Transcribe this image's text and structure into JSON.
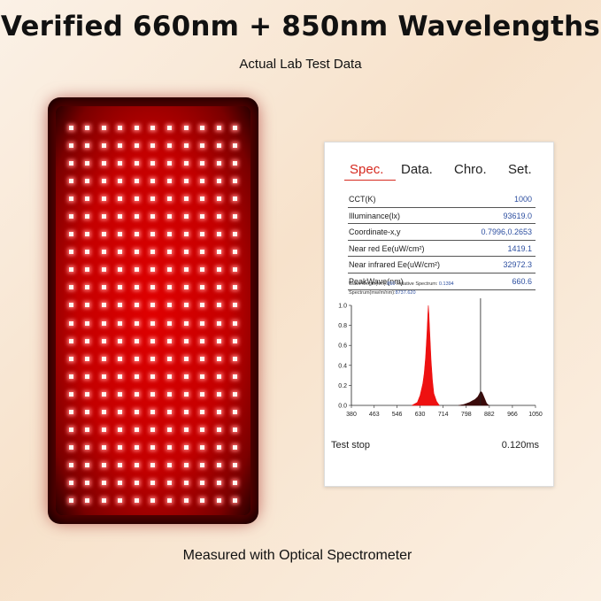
{
  "headline": "Verified 660nm + 850nm Wavelengths",
  "subheadline": "Actual Lab Test Data",
  "footer_caption": "Measured with Optical Spectrometer",
  "led_panel": {
    "columns": 11,
    "rows": 22,
    "led_color": "#fff4f0",
    "glow_color": "#e00000"
  },
  "spectrometer": {
    "tabs": [
      {
        "label": "Spec.",
        "active": true
      },
      {
        "label": "Data.",
        "active": false
      },
      {
        "label": "Chro.",
        "active": false
      },
      {
        "label": "Set.",
        "active": false
      }
    ],
    "readings": [
      {
        "label": "CCT(K)",
        "value": "1000"
      },
      {
        "label": "Illuminance(lx)",
        "value": "93619.0"
      },
      {
        "label": "Coordinate-x,y",
        "value": "0.7996,0.2653"
      },
      {
        "label": "Near red Ee(uW/cm²)",
        "value": "1419.1"
      },
      {
        "label": "Near infrared Ee(uW/cm²)",
        "value": "32972.3"
      },
      {
        "label": "PeakWave(nm)",
        "value": "660.6"
      }
    ],
    "meta": {
      "wavelength_label": "Wave length(nm):",
      "wavelength_value": "850",
      "relative_label": "Relative Spectrum:",
      "relative_value": "0.1394",
      "spectrum_label": "Spectrum(mw/m/nm):",
      "spectrum_value": "8737.620"
    },
    "status_left": "Test stop",
    "status_right": "0.120ms",
    "accent_color": "#d62a20",
    "value_color": "#2d4fa0"
  },
  "chart_data": {
    "type": "line",
    "title": "",
    "xlabel": "",
    "ylabel": "",
    "xlim": [
      380,
      1050
    ],
    "ylim": [
      0,
      1.0
    ],
    "x_ticks": [
      380,
      463,
      546,
      630,
      714,
      798,
      882,
      966,
      1050
    ],
    "y_ticks": [
      0.0,
      0.2,
      0.4,
      0.6,
      0.8,
      1.0
    ],
    "cursor_x": 850,
    "series": [
      {
        "color": "#ee1111",
        "x": [
          600,
          620,
          630,
          640,
          645,
          650,
          655,
          658,
          660,
          662,
          665,
          670,
          675,
          680,
          690,
          700
        ],
        "y": [
          0.0,
          0.03,
          0.1,
          0.22,
          0.32,
          0.48,
          0.72,
          0.9,
          1.0,
          0.92,
          0.74,
          0.45,
          0.25,
          0.12,
          0.04,
          0.0
        ]
      },
      {
        "color": "#3a0a0a",
        "x": [
          770,
          790,
          810,
          820,
          830,
          840,
          845,
          850,
          855,
          860,
          866,
          872,
          880
        ],
        "y": [
          0.0,
          0.01,
          0.03,
          0.045,
          0.06,
          0.085,
          0.11,
          0.14,
          0.13,
          0.1,
          0.06,
          0.02,
          0.0
        ]
      }
    ]
  }
}
